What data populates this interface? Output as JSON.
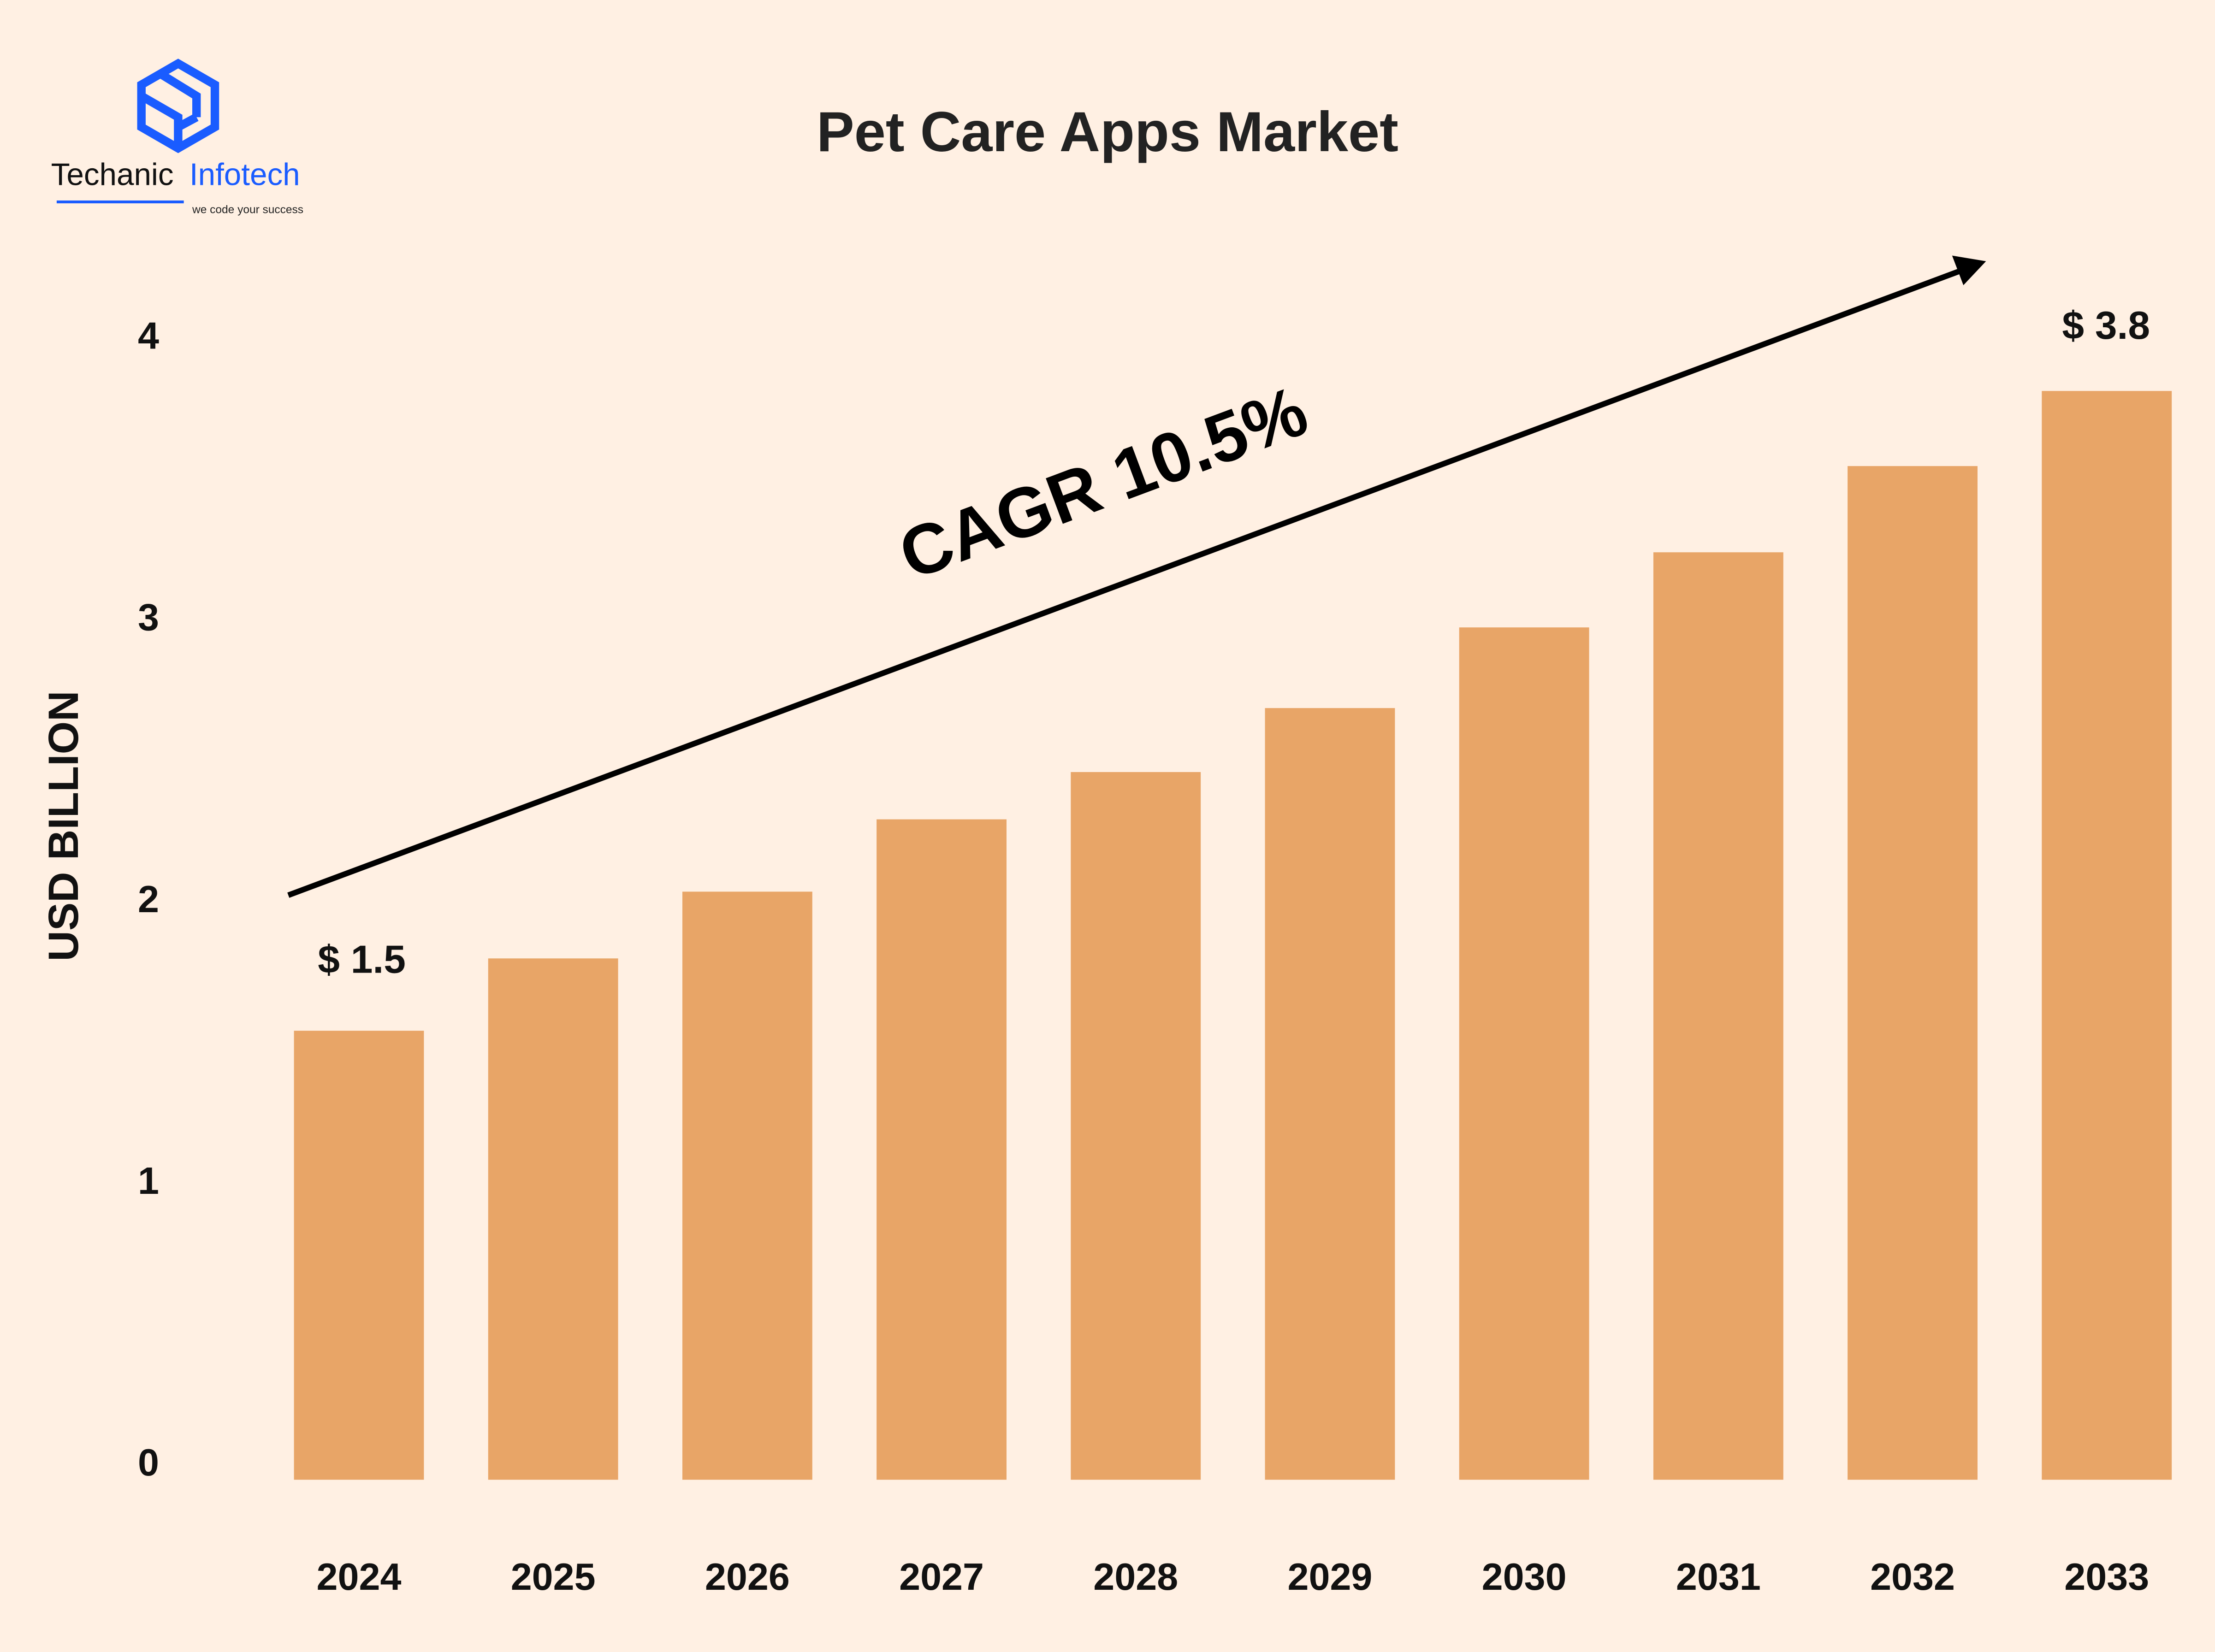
{
  "logo": {
    "brand_dark": "Techanic",
    "brand_blue": "Infotech",
    "tagline": "we code your success",
    "color": "#1a5cff"
  },
  "chart_data": {
    "type": "bar",
    "title": "Pet Care Apps Market",
    "xlabel": "",
    "ylabel": "USD BILLION",
    "ylim": [
      0,
      4
    ],
    "yticks": [
      "0",
      "1",
      "2",
      "3",
      "4"
    ],
    "categories": [
      "2024",
      "2025",
      "2026",
      "2027",
      "2028",
      "2029",
      "2030",
      "2031",
      "2032",
      "2033"
    ],
    "values": [
      1.5,
      1.76,
      2.0,
      2.26,
      2.43,
      2.66,
      2.95,
      3.22,
      3.53,
      3.8
    ],
    "data_labels": {
      "first": "$ 1.5",
      "last": "$ 3.8"
    },
    "annotation": "CAGR 10.5%",
    "grid": false,
    "bar_color": "#e8a567",
    "background": "#fff0e3"
  }
}
